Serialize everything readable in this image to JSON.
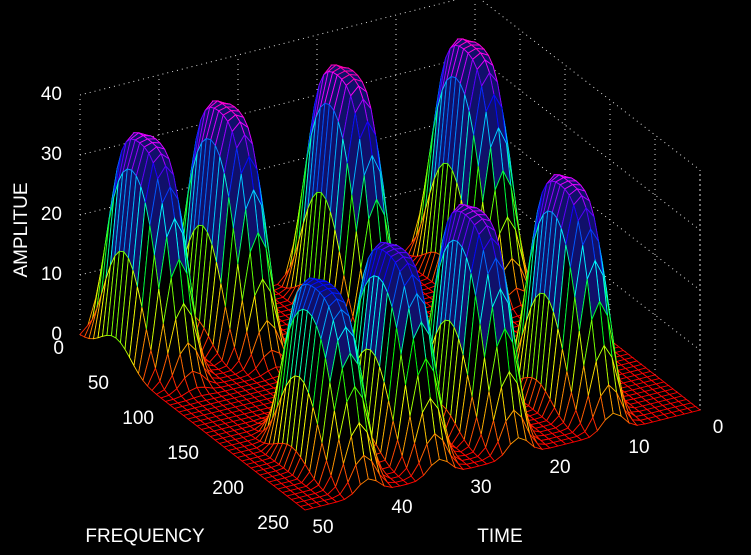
{
  "chart_data": {
    "type": "mesh",
    "xlabel": "TIME",
    "ylabel": "FREQUENCY",
    "zlabel": "AMPLITUE",
    "x": [
      46,
      36,
      21,
      5,
      42,
      33,
      23,
      11
    ],
    "y": [
      40,
      40,
      40,
      40,
      200,
      200,
      200,
      200
    ],
    "z": [
      36,
      38,
      39,
      38,
      29,
      32,
      35,
      36
    ],
    "xlim": [
      0,
      50
    ],
    "ylim": [
      0,
      250
    ],
    "zlim": [
      0,
      40
    ],
    "xticks": [
      0,
      10,
      20,
      30,
      40,
      50
    ],
    "yticks": [
      0,
      50,
      100,
      150,
      200,
      250
    ],
    "zticks": [
      0,
      10,
      20,
      30,
      40
    ],
    "grid": true,
    "colormap": "hsv"
  }
}
